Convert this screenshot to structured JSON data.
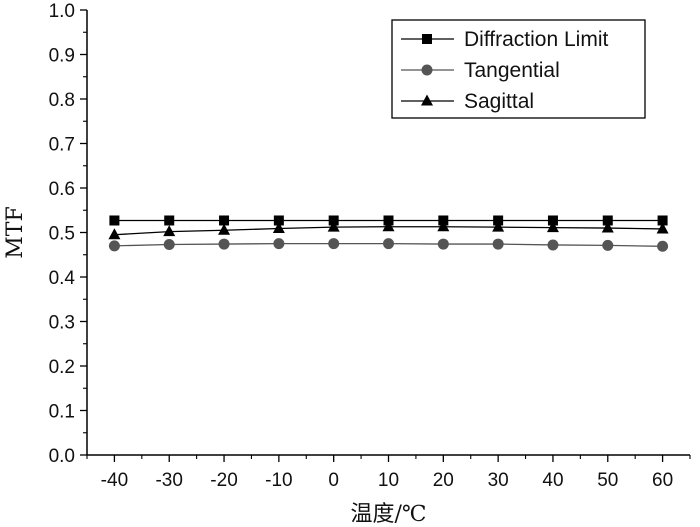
{
  "chart_data": {
    "type": "line",
    "title": "",
    "xlabel": "温度/℃",
    "ylabel": "MTF",
    "x": [
      -40,
      -30,
      -20,
      -10,
      0,
      10,
      20,
      30,
      40,
      50,
      60
    ],
    "xlim": [
      -45,
      65
    ],
    "ylim": [
      0.0,
      1.0
    ],
    "x_ticks": [
      "-40",
      "-30",
      "-20",
      "-10",
      "0",
      "10",
      "20",
      "30",
      "40",
      "50",
      "60"
    ],
    "y_ticks": [
      "0.0",
      "0.1",
      "0.2",
      "0.3",
      "0.4",
      "0.5",
      "0.6",
      "0.7",
      "0.8",
      "0.9",
      "1.0"
    ],
    "grid": false,
    "legend_position": "top-right",
    "series": [
      {
        "name": "Diffraction Limit",
        "marker": "square",
        "color": "#000000",
        "values": [
          0.527,
          0.527,
          0.527,
          0.527,
          0.527,
          0.527,
          0.527,
          0.527,
          0.527,
          0.527,
          0.527
        ]
      },
      {
        "name": "Tangential",
        "marker": "circle",
        "color": "#555555",
        "values": [
          0.47,
          0.473,
          0.474,
          0.475,
          0.475,
          0.475,
          0.474,
          0.474,
          0.472,
          0.471,
          0.469
        ]
      },
      {
        "name": "Sagittal",
        "marker": "triangle",
        "color": "#000000",
        "values": [
          0.495,
          0.502,
          0.505,
          0.509,
          0.512,
          0.513,
          0.513,
          0.512,
          0.511,
          0.51,
          0.508
        ]
      }
    ]
  }
}
